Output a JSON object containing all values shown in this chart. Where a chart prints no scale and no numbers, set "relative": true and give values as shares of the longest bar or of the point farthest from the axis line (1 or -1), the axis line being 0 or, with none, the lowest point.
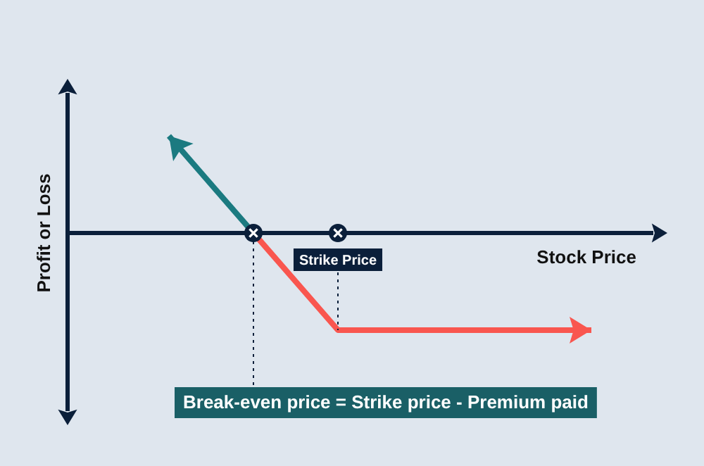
{
  "chart_data": {
    "type": "line",
    "relative": true,
    "xlabel": "Stock Price",
    "ylabel": "Profit or Loss",
    "categories": [
      null,
      null,
      null,
      null,
      null,
      null
    ],
    "series": [
      {
        "color": "#1b7a80",
        "values": [
          1,
          0,
          null,
          null,
          null,
          null
        ]
      },
      {
        "color": "#f9564f",
        "values": [
          null,
          0,
          -1,
          -1,
          -1,
          -1
        ]
      }
    ],
    "annotations": [
      "Strike Price",
      "Break-even price = Strike price - Premium paid"
    ]
  }
}
